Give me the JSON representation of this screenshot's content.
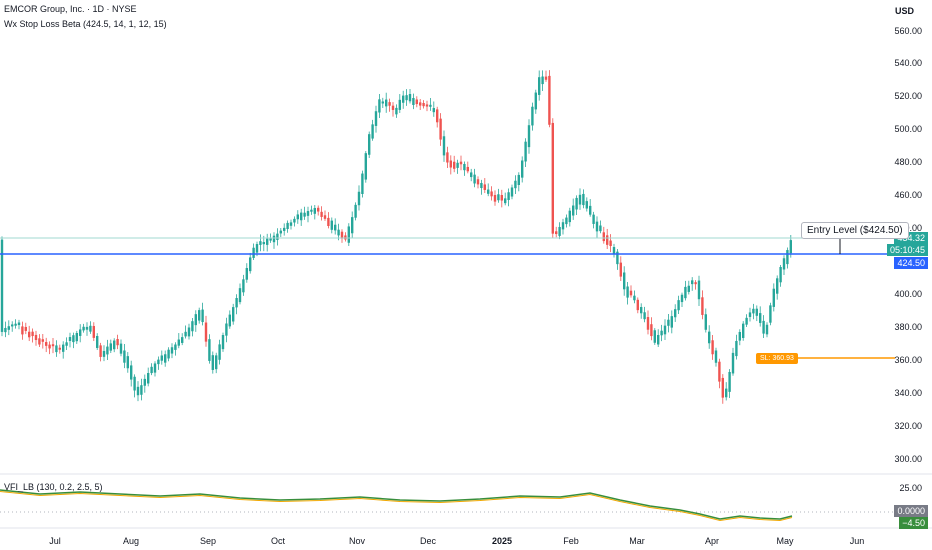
{
  "header": {
    "symbol_line": "EMCOR Group, Inc. · 1D · NYSE",
    "indicator_line": "Wx Stop Loss Beta (424.5, 14, 1, 12, 15)",
    "currency": "USD"
  },
  "price_axis": {
    "ticks": [
      "560.00",
      "540.00",
      "520.00",
      "500.00",
      "480.00",
      "460.00",
      "440.00",
      "400.00",
      "380.00",
      "360.00",
      "340.00",
      "320.00",
      "300.00"
    ]
  },
  "time_axis": {
    "ticks": [
      {
        "label": "Jul",
        "bold": false
      },
      {
        "label": "Aug",
        "bold": false
      },
      {
        "label": "Sep",
        "bold": false
      },
      {
        "label": "Oct",
        "bold": false
      },
      {
        "label": "Nov",
        "bold": false
      },
      {
        "label": "Dec",
        "bold": false
      },
      {
        "label": "2025",
        "bold": true
      },
      {
        "label": "Feb",
        "bold": false
      },
      {
        "label": "Mar",
        "bold": false
      },
      {
        "label": "Apr",
        "bold": false
      },
      {
        "label": "May",
        "bold": false
      },
      {
        "label": "Jun",
        "bold": false
      }
    ]
  },
  "tags": {
    "last_price": "434.32",
    "countdown": "05:10:45",
    "entry_price": "424.50",
    "vfi_axis_top": "25.00",
    "vfi_zero": "0.0000",
    "vfi_value": "−4.50"
  },
  "annotations": {
    "entry_label": "Entry  Level ($424.50)",
    "stop_loss_label": "SL: 360.93"
  },
  "vfi": {
    "title": "VFI_LB (130, 0.2, 2.5, 5)"
  },
  "colors": {
    "up": "#26a69a",
    "down": "#ef5350",
    "entry_line": "#2962ff",
    "stop_line": "#ff9800",
    "vfi_line": "#388e3c",
    "vfi_signal": "#f0a800",
    "last_price_tag": "#26a69a",
    "vfi_value_tag": "#388e3c"
  }
}
